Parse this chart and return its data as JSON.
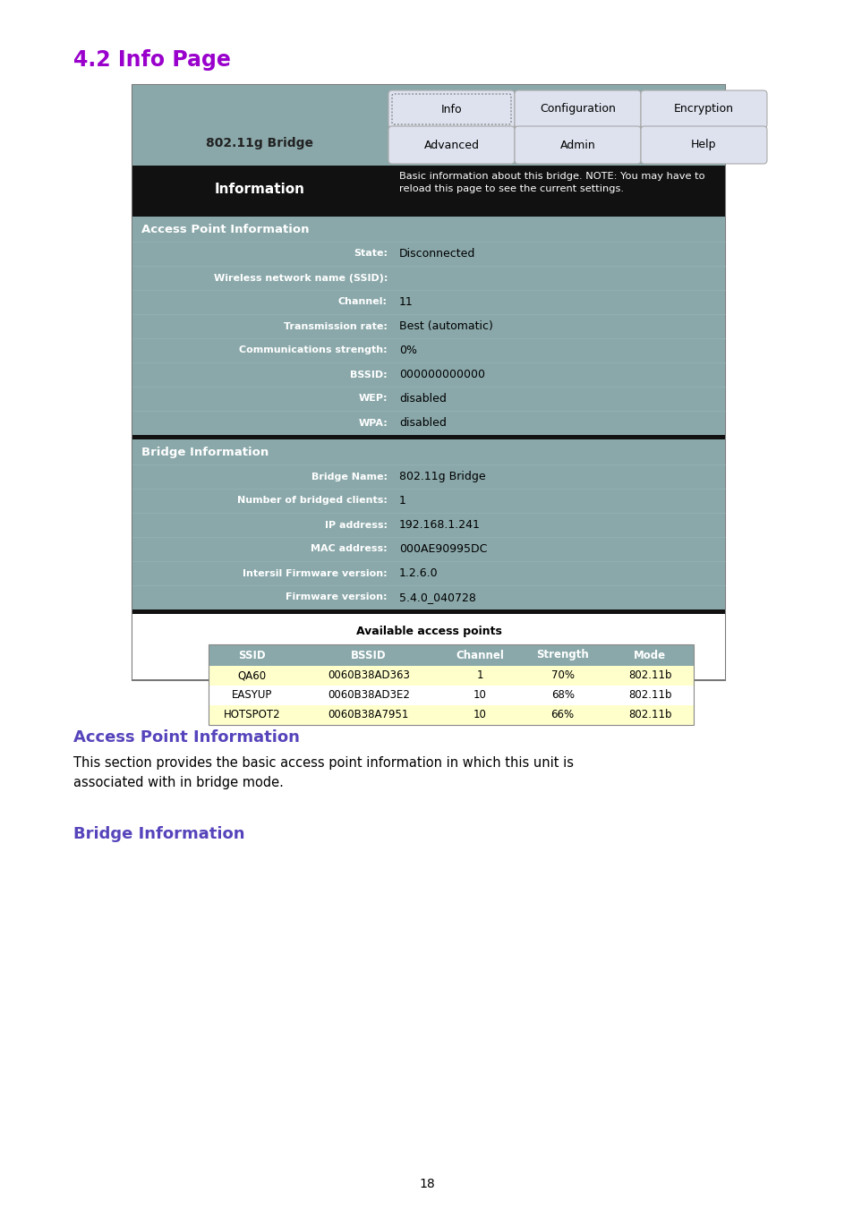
{
  "title": "4.2 Info Page",
  "title_color": "#9900cc",
  "page_number": "18",
  "header_bg": "#8aa8aa",
  "info_bar_text": "Information",
  "info_bar_desc": "Basic information about this bridge. NOTE: You may have to\nreload this page to see the current settings.",
  "section1_title": "Access Point Information",
  "section1_fields": [
    [
      "State:",
      "Disconnected"
    ],
    [
      "Wireless network name (SSID):",
      ""
    ],
    [
      "Channel:",
      "11"
    ],
    [
      "Transmission rate:",
      "Best (automatic)"
    ],
    [
      "Communications strength:",
      "0%"
    ],
    [
      "BSSID:",
      "000000000000"
    ],
    [
      "WEP:",
      "disabled"
    ],
    [
      "WPA:",
      "disabled"
    ]
  ],
  "section2_title": "Bridge Information",
  "section2_fields": [
    [
      "Bridge Name:",
      "802.11g Bridge"
    ],
    [
      "Number of bridged clients:",
      "1"
    ],
    [
      "IP address:",
      "192.168.1.241"
    ],
    [
      "MAC address:",
      "000AE90995DC"
    ],
    [
      "Intersil Firmware version:",
      "1.2.6.0"
    ],
    [
      "Firmware version:",
      "5.4.0_040728"
    ]
  ],
  "table_title": "Available access points",
  "table_headers": [
    "SSID",
    "BSSID",
    "Channel",
    "Strength",
    "Mode"
  ],
  "table_header_bg": "#8aa8aa",
  "table_rows": [
    [
      "QA60",
      "0060B38AD363",
      "1",
      "70%",
      "802.11b"
    ],
    [
      "EASYUP",
      "0060B38AD3E2",
      "10",
      "68%",
      "802.11b"
    ],
    [
      "HOTSPOT2",
      "0060B38A7951",
      "10",
      "66%",
      "802.11b"
    ]
  ],
  "table_row_colors": [
    "#ffffcc",
    "#ffffff",
    "#ffffcc"
  ],
  "ap_section_title": "Access Point Information",
  "ap_section_color": "#5544bb",
  "ap_section_text": "This section provides the basic access point information in which this unit is\nassociated with in bridge mode.",
  "bridge_section_title": "Bridge Information",
  "bridge_section_color": "#5544bb",
  "section_bg": "#8aa8aa",
  "main_bg": "#ffffff",
  "nav_rows": [
    [
      "Info",
      "Configuration",
      "Encryption"
    ],
    [
      "Advanced",
      "Admin",
      "Help"
    ]
  ]
}
